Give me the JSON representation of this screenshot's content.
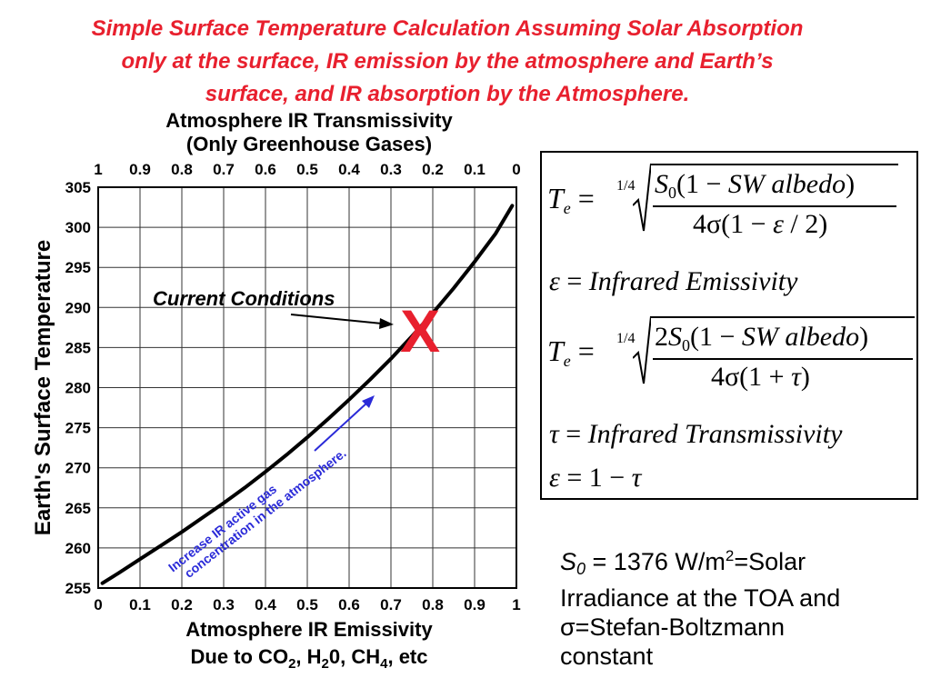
{
  "slide": {
    "title_line1": "Simple Surface Temperature Calculation Assuming Solar Absorption",
    "title_line2": "only at the surface, IR emission by the atmosphere and Earth’s",
    "title_line3": "surface, and IR absorption by the Atmosphere."
  },
  "chart_data": {
    "type": "line",
    "x_top_title_line1": "Atmosphere IR Transmissivity",
    "x_top_title_line2": "(Only Greenhouse Gases)",
    "x_bottom_title_line1": "Atmosphere IR Emissivity",
    "x_bottom_title_line2": "Due to CO2, H20, CH4, etc",
    "ylabel": "Earth's Surface Temperature",
    "xlim": [
      0,
      1
    ],
    "ylim": [
      255,
      305
    ],
    "x_ticks": [
      "0",
      "0.1",
      "0.2",
      "0.3",
      "0.4",
      "0.5",
      "0.6",
      "0.7",
      "0.8",
      "0.9",
      "1"
    ],
    "x_top_ticks": [
      "1",
      "0.9",
      "0.8",
      "0.7",
      "0.6",
      "0.5",
      "0.4",
      "0.3",
      "0.2",
      "0.1",
      "0"
    ],
    "y_ticks": [
      255,
      260,
      265,
      270,
      275,
      280,
      285,
      290,
      295,
      300,
      305
    ],
    "grid": true,
    "series": [
      {
        "x": [
          0.01,
          0.05,
          0.1,
          0.15,
          0.2,
          0.25,
          0.3,
          0.35,
          0.4,
          0.45,
          0.5,
          0.55,
          0.6,
          0.65,
          0.7,
          0.75,
          0.8,
          0.85,
          0.9,
          0.95,
          0.99
        ],
        "y": [
          255.6,
          256.9,
          258.6,
          260.3,
          262.0,
          263.8,
          265.6,
          267.5,
          269.5,
          271.6,
          273.8,
          276.1,
          278.5,
          281.0,
          283.6,
          286.4,
          289.3,
          292.4,
          295.7,
          299.2,
          302.7
        ]
      }
    ],
    "current_point": {
      "x": 0.77,
      "y": 287.0,
      "marker": "X",
      "color": "#e8202e"
    },
    "annotation_current": "Current Conditions",
    "annotation_increase_line1": "Increase IR active gas",
    "annotation_increase_line2": "concentration in the atmosphere.",
    "annotation_color": "#2a2ad8"
  },
  "equations": {
    "eq1_num": "S0(1 − SW albedo)",
    "eq1_den": "4σ(1 − ε / 2)",
    "eq2": "ε = Infrared Emissivity",
    "eq3_num": "2S0(1 − SW albedo)",
    "eq3_den": "4σ(1 + τ)",
    "eq4": "τ = Infrared Transmissivity",
    "eq5": "ε = 1 − τ",
    "lhs": "Te =",
    "root_index": "1/4"
  },
  "note": {
    "line1": "S0 = 1376 W/m2=Solar",
    "line2": "Irradiance at the TOA and",
    "line3": "σ=Stefan-Boltzmann",
    "line4": "constant"
  }
}
